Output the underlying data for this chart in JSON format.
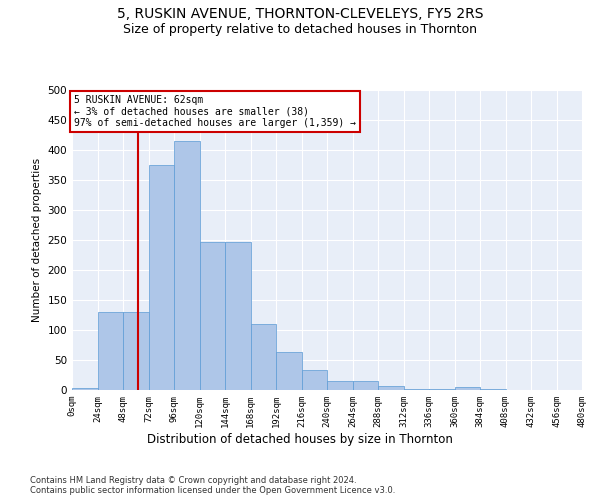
{
  "title1": "5, RUSKIN AVENUE, THORNTON-CLEVELEYS, FY5 2RS",
  "title2": "Size of property relative to detached houses in Thornton",
  "xlabel": "Distribution of detached houses by size in Thornton",
  "ylabel": "Number of detached properties",
  "footnote": "Contains HM Land Registry data © Crown copyright and database right 2024.\nContains public sector information licensed under the Open Government Licence v3.0.",
  "bin_edges": [
    0,
    24,
    48,
    72,
    96,
    120,
    144,
    168,
    192,
    216,
    240,
    264,
    288,
    312,
    336,
    360,
    384,
    408,
    432,
    456,
    480
  ],
  "bar_heights": [
    3,
    130,
    130,
    375,
    415,
    247,
    247,
    110,
    63,
    33,
    15,
    15,
    6,
    2,
    2,
    5,
    1,
    0,
    0,
    0
  ],
  "bar_color": "#aec6e8",
  "bar_edge_color": "#5b9bd5",
  "property_size": 62,
  "property_label": "5 RUSKIN AVENUE: 62sqm",
  "annotation_line1": "← 3% of detached houses are smaller (38)",
  "annotation_line2": "97% of semi-detached houses are larger (1,359) →",
  "vline_color": "#cc0000",
  "annotation_box_color": "#cc0000",
  "bg_color": "#e8eef8",
  "ylim": [
    0,
    500
  ],
  "yticks": [
    0,
    50,
    100,
    150,
    200,
    250,
    300,
    350,
    400,
    450,
    500
  ],
  "title1_fontsize": 10,
  "title2_fontsize": 9,
  "footnote_fontsize": 6.0
}
